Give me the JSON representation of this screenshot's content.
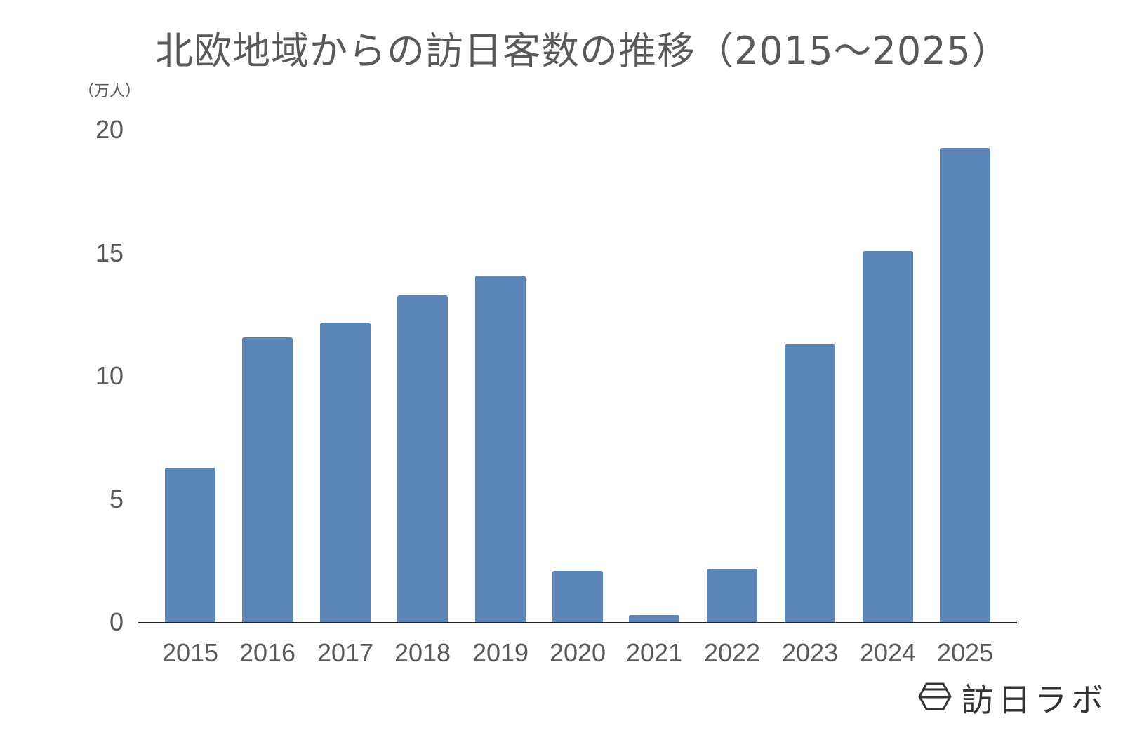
{
  "title": "北欧地域からの訪日客数の推移（2015～2025）",
  "unit_label": "（万人）",
  "brand": {
    "name": "訪日ラボ",
    "icon": "hexagon-logo-icon"
  },
  "colors": {
    "bar": "#5b84b7",
    "text": "#595959",
    "axis": "#222222"
  },
  "chart_data": {
    "type": "bar",
    "title": "北欧地域からの訪日客数の推移（2015～2025）",
    "xlabel": "",
    "ylabel": "（万人）",
    "ylim": [
      0,
      20
    ],
    "yticks": [
      0,
      5,
      10,
      15,
      20
    ],
    "grid": false,
    "legend": null,
    "categories": [
      "2015",
      "2016",
      "2017",
      "2018",
      "2019",
      "2020",
      "2021",
      "2022",
      "2023",
      "2024",
      "2025"
    ],
    "values": [
      6.3,
      11.6,
      12.2,
      13.3,
      14.1,
      2.1,
      0.3,
      2.2,
      11.3,
      15.1,
      19.3
    ]
  }
}
